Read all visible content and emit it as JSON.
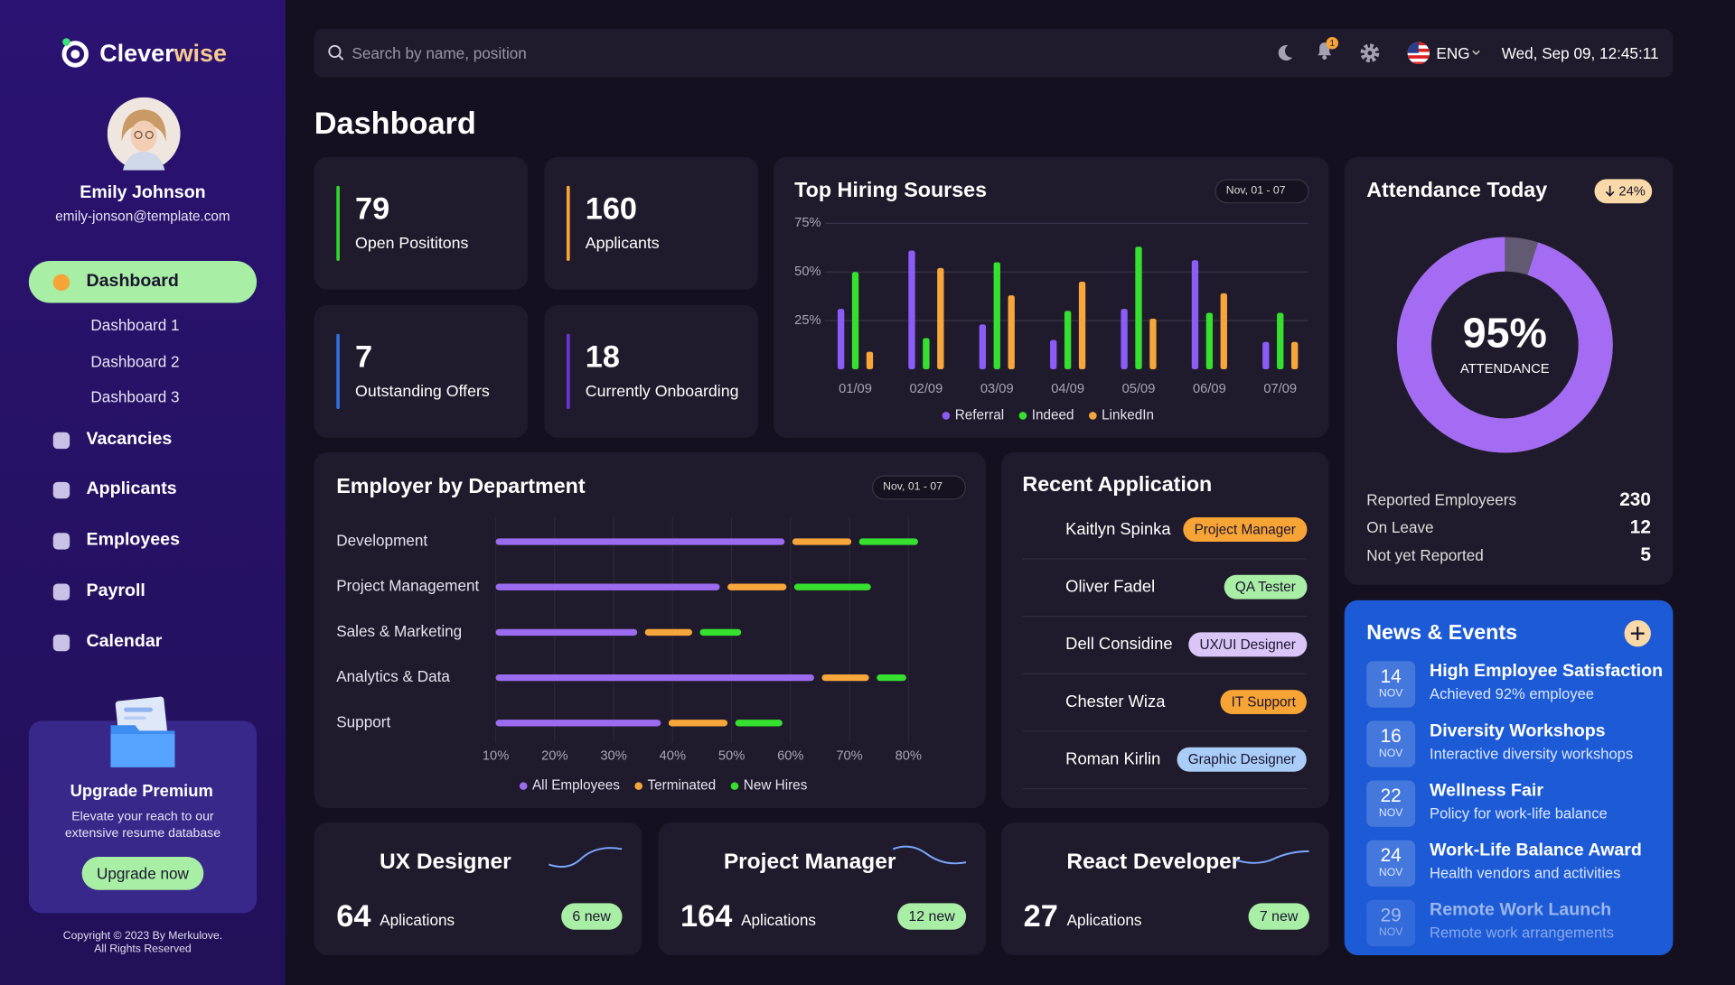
{
  "sidebar": {
    "brand": {
      "first": "Clever",
      "second": "wise"
    },
    "user": {
      "name": "Emily Johnson",
      "email": "emily-jonson@template.com"
    },
    "nav": [
      {
        "label": "Dashboard",
        "children": [
          "Dashboard 1",
          "Dashboard 2",
          "Dashboard 3"
        ]
      },
      {
        "label": "Vacancies"
      },
      {
        "label": "Applicants"
      },
      {
        "label": "Employees"
      },
      {
        "label": "Payroll"
      },
      {
        "label": "Calendar"
      }
    ],
    "promo": {
      "title": "Upgrade Premium",
      "text": "Elevate your reach to our extensive resume database",
      "button": "Upgrade now"
    },
    "copyright": [
      "Copyright © 2023 By Merkulove.",
      "All Rights Reserved"
    ]
  },
  "topbar": {
    "search_placeholder": "Search by name, position",
    "notifications": 1,
    "language": "ENG",
    "datetime": "Wed, Sep 09, 12:45:11"
  },
  "page_title": "Dashboard",
  "stats": [
    {
      "value": 79,
      "label": "Open Posititons",
      "color": "#2fd52f"
    },
    {
      "value": 160,
      "label": "Applicants",
      "color": "#f7a63b"
    },
    {
      "value": 7,
      "label": "Outstanding Offers",
      "color": "#2f6fe0"
    },
    {
      "value": 18,
      "label": "Currently Onboarding",
      "color": "#6a35d8"
    }
  ],
  "chart_data": [
    {
      "type": "bar",
      "title": "Top Hiring Sourses",
      "range": "Nov, 01 - 07",
      "categories": [
        "01/09",
        "02/09",
        "03/09",
        "04/09",
        "05/09",
        "06/09",
        "07/09"
      ],
      "series": [
        {
          "name": "Referral",
          "color": "#8b5cf6",
          "values": [
            31,
            61,
            23,
            15,
            31,
            56,
            14
          ]
        },
        {
          "name": "Indeed",
          "color": "#35e02f",
          "values": [
            50,
            16,
            55,
            30,
            63,
            29,
            29
          ]
        },
        {
          "name": "LinkedIn",
          "color": "#f7a63b",
          "values": [
            9,
            52,
            38,
            45,
            26,
            39,
            14
          ]
        }
      ],
      "ylim": [
        0,
        75
      ],
      "yticks": [
        {
          "value": 25,
          "label": "25%"
        },
        {
          "value": 50,
          "label": "50%"
        },
        {
          "value": 75,
          "label": "75%"
        }
      ],
      "grid": true
    },
    {
      "type": "hbar",
      "title": "Employer by Department",
      "range": "Nov, 01 - 07",
      "categories": [
        "Development",
        "Project Management",
        "Sales & Marketing",
        "Analytics & Data",
        "Support"
      ],
      "series": [
        {
          "name": "All Employees",
          "color": "#9b6cf0",
          "values": [
            59,
            48,
            34,
            64,
            38
          ]
        },
        {
          "name": "Terminated",
          "color": "#f7a63b",
          "values": [
            10,
            10,
            8,
            8,
            10
          ]
        },
        {
          "name": "New Hires",
          "color": "#35e02f",
          "values": [
            10,
            13,
            7,
            5,
            8
          ]
        }
      ],
      "xlim": [
        10,
        80
      ],
      "xticks": [
        {
          "value": 10,
          "label": "10%"
        },
        {
          "value": 20,
          "label": "20%"
        },
        {
          "value": 30,
          "label": "30%"
        },
        {
          "value": 40,
          "label": "40%"
        },
        {
          "value": 50,
          "label": "50%"
        },
        {
          "value": 60,
          "label": "60%"
        },
        {
          "value": 70,
          "label": "70%"
        },
        {
          "value": 80,
          "label": "80%"
        }
      ],
      "grid": true
    }
  ],
  "recent_applications": {
    "title": "Recent Application",
    "items": [
      {
        "name": "Kaitlyn Spinka",
        "role": "Project Manager",
        "color": "#f7a436"
      },
      {
        "name": "Oliver Fadel",
        "role": "QA Tester",
        "color": "#a8eea4"
      },
      {
        "name": "Dell Considine",
        "role": "UX/UI Designer",
        "color": "#d9c6f7"
      },
      {
        "name": "Chester Wiza",
        "role": "IT Support",
        "color": "#f7a436"
      },
      {
        "name": "Roman Kirlin",
        "role": "Graphic Designer",
        "color": "#a9cdf7"
      }
    ]
  },
  "attendance": {
    "title": "Attendance Today",
    "change": "24%",
    "value": 95,
    "value_label": "95%",
    "caption": "ATTENDANCE",
    "rows": [
      {
        "label": "Reported Employeers",
        "value": 230
      },
      {
        "label": "On Leave",
        "value": 12
      },
      {
        "label": "Not yet Reported",
        "value": 5
      }
    ]
  },
  "news": {
    "title": "News & Events",
    "items": [
      {
        "day": 14,
        "month": "NOV",
        "title": "High Employee Satisfaction",
        "text": "Achieved 92% employee"
      },
      {
        "day": 16,
        "month": "NOV",
        "title": "Diversity Workshops",
        "text": "Interactive diversity workshops"
      },
      {
        "day": 22,
        "month": "NOV",
        "title": "Wellness Fair",
        "text": "Policy for work-life balance"
      },
      {
        "day": 24,
        "month": "NOV",
        "title": "Work-Life Balance Award",
        "text": "Health vendors and activities"
      },
      {
        "day": 29,
        "month": "NOV",
        "title": "Remote Work Launch",
        "text": "Remote work arrangements"
      }
    ]
  },
  "vacancies": [
    {
      "title": "UX Designer",
      "count": 64,
      "unit": "Aplications",
      "new": "6 new"
    },
    {
      "title": "Project Manager",
      "count": 164,
      "unit": "Aplications",
      "new": "12 new"
    },
    {
      "title": "React Developer",
      "count": 27,
      "unit": "Aplications",
      "new": "7 new"
    }
  ]
}
